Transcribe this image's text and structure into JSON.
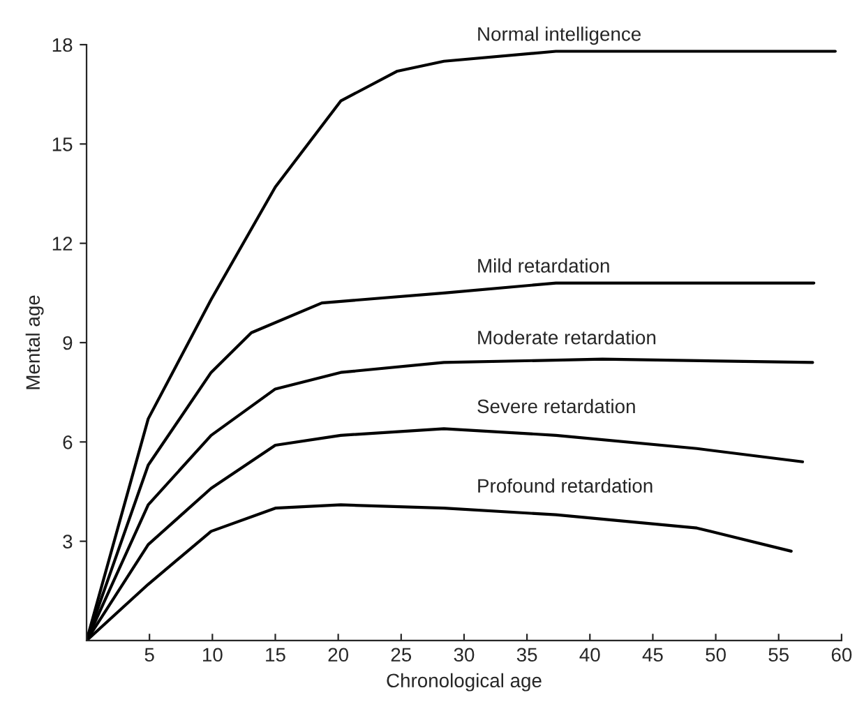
{
  "chart_data": {
    "type": "line",
    "xlabel": "Chronological age",
    "ylabel": "Mental age",
    "xlim": [
      0,
      60
    ],
    "ylim": [
      0,
      18
    ],
    "xticks": [
      5,
      10,
      15,
      20,
      25,
      30,
      35,
      40,
      45,
      50,
      55,
      60
    ],
    "yticks": [
      3,
      6,
      9,
      12,
      15,
      18
    ],
    "grid": false,
    "legend": false,
    "marker": "none",
    "line_style": "solid",
    "series": [
      {
        "name": "Normal intelligence",
        "color": "#000000",
        "x": [
          0,
          4.9,
          9.9,
          15,
          20.2,
          24.7,
          28.4,
          37.3,
          59.5
        ],
        "values": [
          0,
          6.7,
          10.3,
          13.7,
          16.3,
          17.2,
          17.5,
          17.8,
          17.8
        ]
      },
      {
        "name": "Mild retardation",
        "color": "#000000",
        "x": [
          0,
          4.9,
          9.9,
          13.1,
          18.7,
          28.4,
          37.3,
          57.8
        ],
        "values": [
          0,
          5.3,
          8.1,
          9.3,
          10.2,
          10.5,
          10.8,
          10.8
        ]
      },
      {
        "name": "Moderate retardation",
        "color": "#000000",
        "x": [
          0,
          4.9,
          9.9,
          15,
          20.2,
          28.4,
          41,
          57.7
        ],
        "values": [
          0,
          4.1,
          6.2,
          7.6,
          8.1,
          8.4,
          8.5,
          8.4
        ]
      },
      {
        "name": "Severe retardation",
        "color": "#000000",
        "x": [
          0,
          4.9,
          9.9,
          15,
          20.2,
          28.4,
          37.3,
          48.5,
          56.9
        ],
        "values": [
          0,
          2.9,
          4.6,
          5.9,
          6.2,
          6.4,
          6.2,
          5.8,
          5.4
        ]
      },
      {
        "name": "Profound retardation",
        "color": "#000000",
        "x": [
          0,
          4.9,
          9.9,
          15,
          20.2,
          28.4,
          37.3,
          48.5,
          56
        ],
        "values": [
          0,
          1.7,
          3.3,
          4.0,
          4.1,
          4.0,
          3.8,
          3.4,
          2.7
        ]
      }
    ]
  }
}
